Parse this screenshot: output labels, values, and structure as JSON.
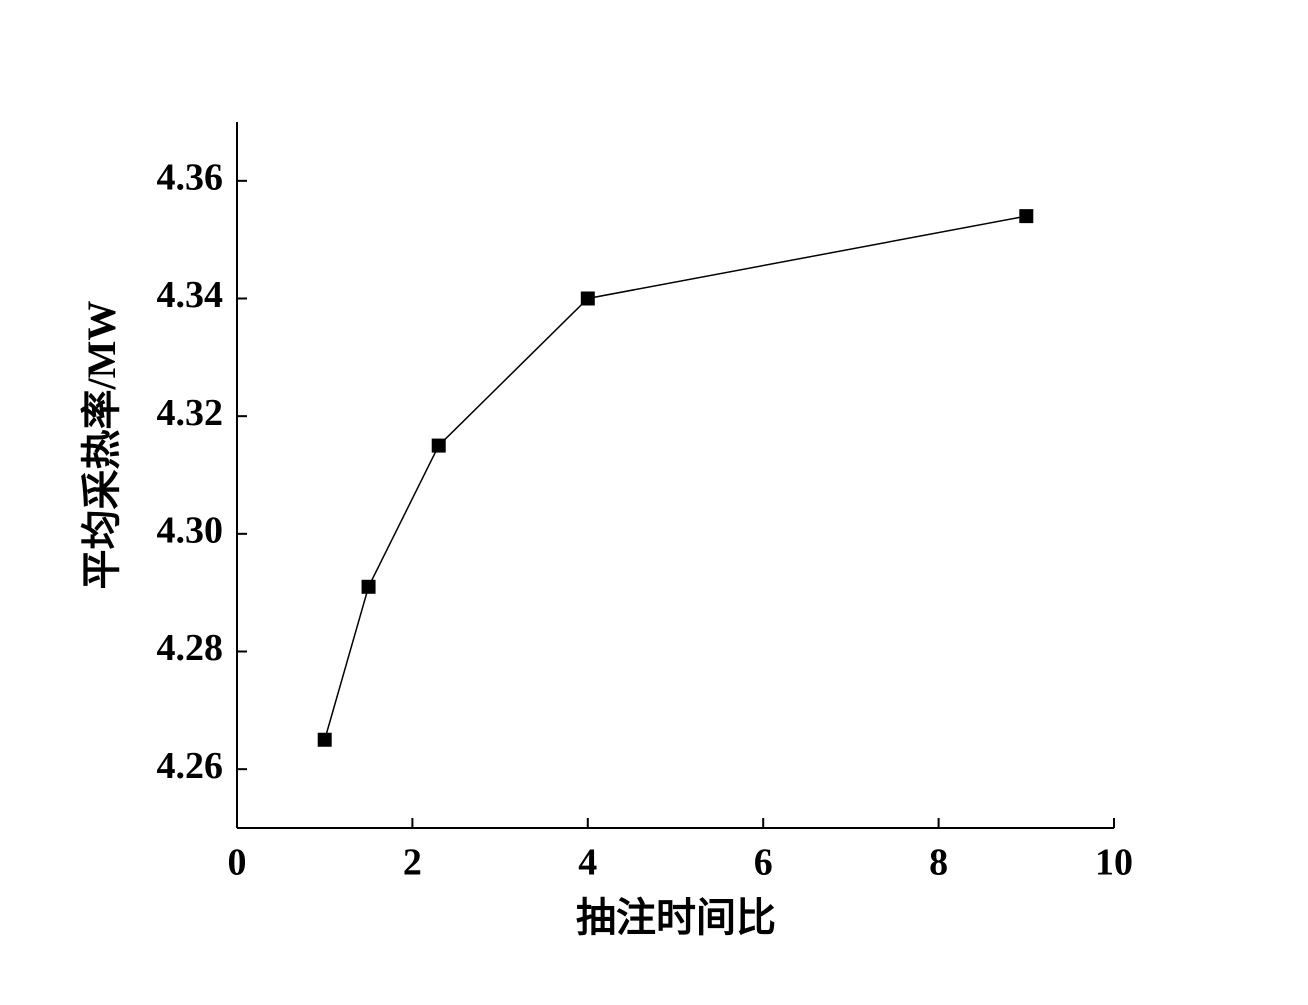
{
  "chart_data": {
    "type": "line",
    "x_label": "抽注时间比",
    "y_label": "平均采热率/MW",
    "x": [
      1,
      1.5,
      2.3,
      4,
      9
    ],
    "values": [
      4.265,
      4.291,
      4.315,
      4.34,
      4.354
    ],
    "color": "#000000",
    "xlim": [
      0,
      10
    ],
    "xticks": [
      0,
      2,
      4,
      6,
      8,
      10
    ],
    "ylim": [
      4.25,
      4.37
    ],
    "yticks": [
      4.26,
      4.28,
      {
        "value": 4.3,
        "label": "4.30"
      },
      4.32,
      4.34,
      4.36
    ]
  }
}
